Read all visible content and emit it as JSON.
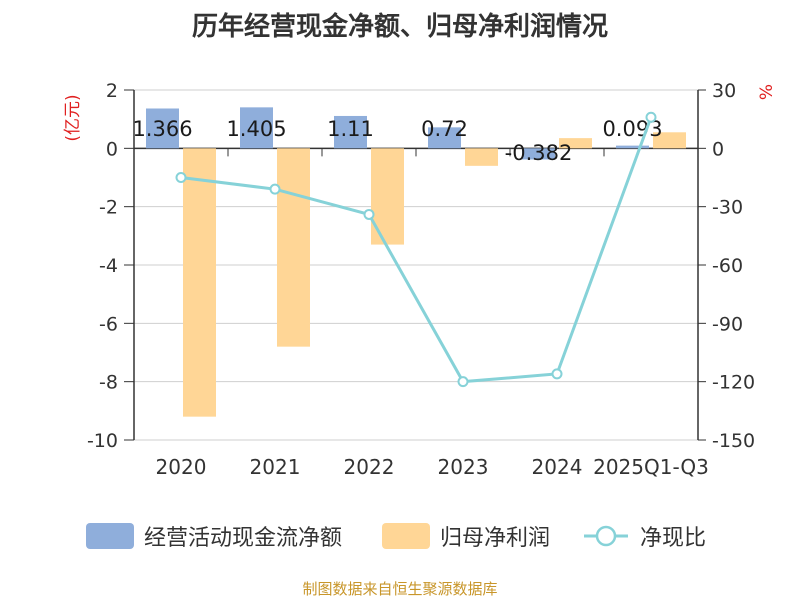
{
  "title": "历年经营现金净额、归母净利润情况",
  "source": "制图数据来自恒生聚源数据库",
  "colors": {
    "cash": "#8faedb",
    "profit": "#ffd696",
    "ratio": "#86d2d8",
    "axis_unit": "#e02020"
  },
  "chart_data": {
    "type": "bar",
    "categories": [
      "2020",
      "2021",
      "2022",
      "2023",
      "2024",
      "2025Q1-Q3"
    ],
    "series": [
      {
        "name": "经营活动现金流净额",
        "type": "bar",
        "axis": "left",
        "values": [
          1.366,
          1.405,
          1.11,
          0.72,
          -0.382,
          0.093
        ],
        "labels": [
          "1.366",
          "1.405",
          "1.11",
          "0.72",
          "-0.382",
          "0.093"
        ]
      },
      {
        "name": "归母净利润",
        "type": "bar",
        "axis": "left",
        "values": [
          -9.2,
          -6.8,
          -3.3,
          -0.6,
          0.35,
          0.55
        ]
      },
      {
        "name": "净现比",
        "type": "line",
        "axis": "right",
        "values": [
          -15,
          -21,
          -34,
          -120,
          -116,
          16
        ]
      }
    ],
    "left_axis": {
      "unit": "(亿元)",
      "ticks": [
        2,
        0,
        -2,
        -4,
        -6,
        -8,
        -10
      ],
      "ylim": [
        -10,
        2
      ]
    },
    "right_axis": {
      "unit": "%",
      "ticks": [
        30,
        0,
        -30,
        -60,
        -90,
        -120,
        -150
      ],
      "ylim": [
        -150,
        30
      ]
    },
    "grid": true,
    "legend_position": "bottom"
  }
}
